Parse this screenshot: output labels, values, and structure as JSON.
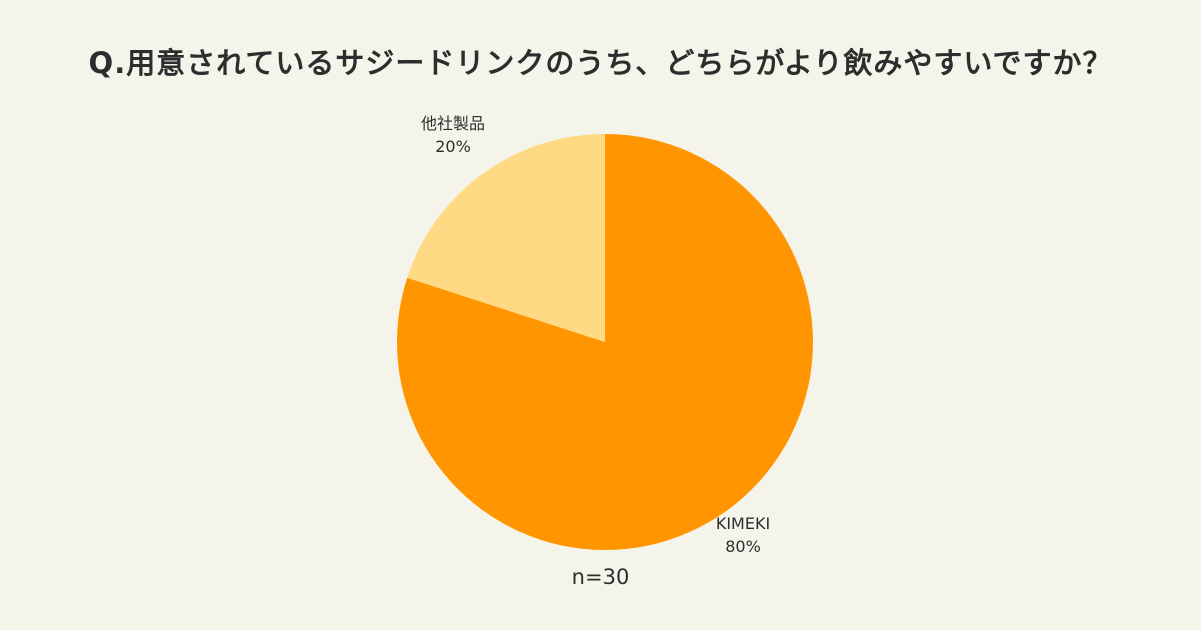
{
  "chart_data": {
    "type": "pie",
    "title": "Q.用意されているサジードリンクのうち、どちらがより飲みやすいですか？",
    "slices": [
      {
        "id": "kimeki",
        "label": "KIMEKI",
        "value": 80,
        "percent_label": "80%",
        "color": "#ff9500"
      },
      {
        "id": "competitor-product",
        "label": "他社製品",
        "value": 20,
        "percent_label": "20%",
        "color": "#ffd983"
      }
    ],
    "start_angle_deg": -90,
    "direction": "clockwise",
    "legend": "none",
    "sample_size_label": "n=30",
    "background_color": "#f5f4ea"
  }
}
